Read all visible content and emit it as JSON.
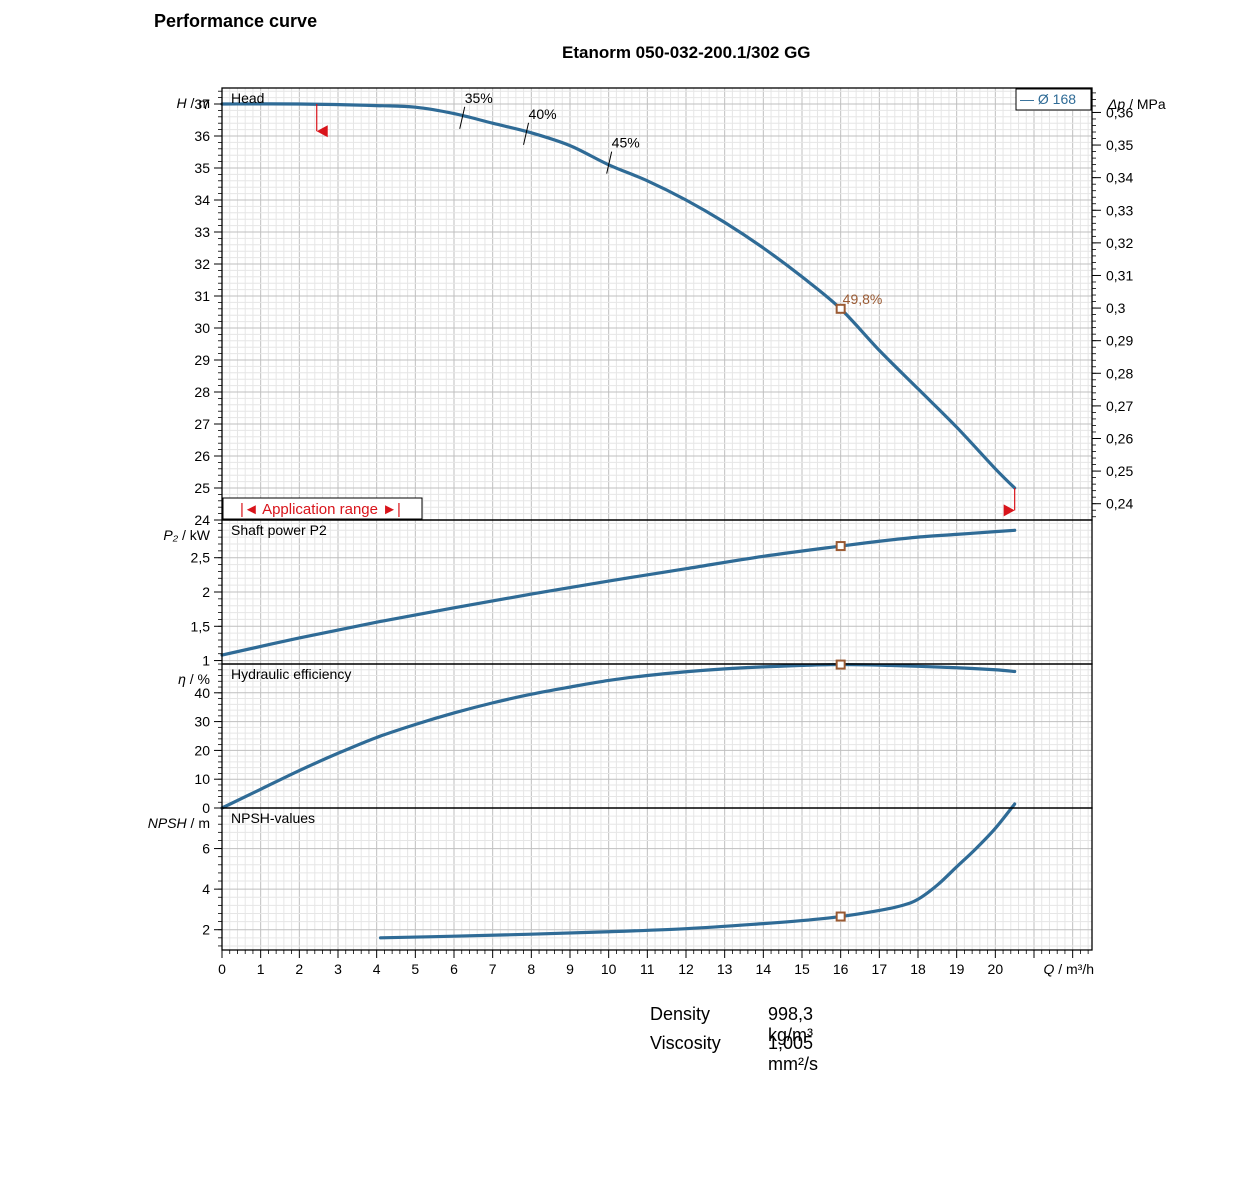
{
  "page": {
    "title": "Performance curve",
    "subtitle": "Etanorm 050-032-200.1/302 GG"
  },
  "fluid_properties": [
    {
      "label": "Density",
      "value": "998,3 kg/m³"
    },
    {
      "label": "Viscosity",
      "value": "1,005 mm²/s"
    }
  ],
  "colors": {
    "curve": "#2f6b96",
    "operating_point": "#9a5a33",
    "application_range": "#d9141b",
    "grid_major": "#bfbfbf",
    "grid_minor": "#e6e6e6"
  },
  "chart_data": [
    {
      "type": "line",
      "panel": "head",
      "title": "Head",
      "ylabel_italic": "H",
      "ylabel_unit": "/ m",
      "ylabel_right_italic": "Δp",
      "ylabel_right_unit": "/ MPa",
      "ylim": [
        24,
        37.5
      ],
      "yticks": [
        24,
        25,
        26,
        27,
        28,
        29,
        30,
        31,
        32,
        33,
        34,
        35,
        36,
        37
      ],
      "ylim_right": [
        0.235,
        0.3675
      ],
      "yticks_right": [
        "0,24",
        "0,25",
        "0,26",
        "0,27",
        "0,28",
        "0,29",
        "0,3",
        "0,31",
        "0,32",
        "0,33",
        "0,34",
        "0,35",
        "0,36"
      ],
      "legend": "— Ø 168",
      "legend_position": "top-right",
      "series": [
        {
          "name": "Ø 168",
          "x": [
            0,
            2,
            4,
            5,
            6,
            7,
            8,
            9,
            10,
            11,
            12,
            13,
            14,
            15,
            16,
            17,
            18,
            19,
            20,
            20.5
          ],
          "y": [
            37.0,
            37.0,
            36.95,
            36.9,
            36.7,
            36.4,
            36.1,
            35.7,
            35.1,
            34.6,
            34.0,
            33.3,
            32.5,
            31.6,
            30.6,
            29.3,
            28.1,
            26.9,
            25.6,
            25.0
          ]
        }
      ],
      "efficiency_marks": [
        {
          "label": "35%",
          "x": 6.2,
          "y": 36.6
        },
        {
          "label": "40%",
          "x": 7.85,
          "y": 36.1
        },
        {
          "label": "45%",
          "x": 10.0,
          "y": 35.2
        }
      ],
      "operating_point": {
        "x": 16,
        "y": 30.6,
        "label": "49,8%"
      },
      "application_range": {
        "label": "|◄ Application range ►|",
        "q_min": 2.45,
        "q_max": 20.5
      }
    },
    {
      "type": "line",
      "panel": "power",
      "title": "Shaft power P2",
      "ylabel_italic": "P₂",
      "ylabel_unit": "/ kW",
      "ylim": [
        0.95,
        3.05
      ],
      "yticks": [
        "1",
        "1,5",
        "2",
        "2,5"
      ],
      "ytick_values": [
        1,
        1.5,
        2,
        2.5
      ],
      "series": [
        {
          "name": "",
          "x": [
            0,
            2,
            4,
            6,
            8,
            10,
            12,
            14,
            16,
            17,
            18,
            19,
            20,
            20.5
          ],
          "y": [
            1.08,
            1.33,
            1.56,
            1.77,
            1.97,
            2.16,
            2.34,
            2.52,
            2.67,
            2.74,
            2.8,
            2.84,
            2.88,
            2.9
          ]
        }
      ],
      "operating_point": {
        "x": 16,
        "y": 2.67
      }
    },
    {
      "type": "line",
      "panel": "efficiency",
      "title": "Hydraulic efficiency",
      "ylabel_italic": "η",
      "ylabel_unit": "/ %",
      "ylim": [
        0,
        50
      ],
      "yticks": [
        "0",
        "10",
        "20",
        "30",
        "40"
      ],
      "ytick_values": [
        0,
        10,
        20,
        30,
        40
      ],
      "series": [
        {
          "name": "",
          "x": [
            0,
            1,
            2,
            3,
            4,
            5,
            6,
            7,
            8,
            9,
            10,
            11,
            12,
            13,
            14,
            15,
            16,
            17,
            18,
            19,
            20,
            20.5
          ],
          "y": [
            0,
            6.5,
            13,
            19,
            24.5,
            29,
            33,
            36.5,
            39.5,
            42,
            44.3,
            46,
            47.3,
            48.3,
            49,
            49.5,
            49.8,
            49.6,
            49.2,
            48.7,
            48.0,
            47.4
          ]
        }
      ],
      "operating_point": {
        "x": 16,
        "y": 49.8
      }
    },
    {
      "type": "line",
      "panel": "npsh",
      "title": "NPSH-values",
      "ylabel_italic": "NPSH",
      "ylabel_unit": "/ m",
      "ylim": [
        1,
        8
      ],
      "yticks": [
        "2",
        "4",
        "6"
      ],
      "ytick_values": [
        2,
        4,
        6
      ],
      "series": [
        {
          "name": "",
          "x": [
            4.1,
            6,
            8,
            10,
            12,
            14,
            15,
            16,
            17,
            17.6,
            18,
            18.5,
            19,
            19.5,
            20,
            20.5
          ],
          "y": [
            1.6,
            1.68,
            1.78,
            1.9,
            2.05,
            2.3,
            2.45,
            2.65,
            2.95,
            3.2,
            3.5,
            4.2,
            5.1,
            6.0,
            7.0,
            8.2
          ]
        }
      ],
      "operating_point": {
        "x": 16,
        "y": 2.65
      }
    }
  ],
  "x_axis": {
    "label_italic": "Q",
    "label_unit": "/ m³/h",
    "xlim": [
      0,
      22.5
    ],
    "ticks": [
      "0",
      "1",
      "2",
      "3",
      "4",
      "5",
      "6",
      "7",
      "8",
      "9",
      "10",
      "11",
      "12",
      "13",
      "14",
      "15",
      "16",
      "17",
      "18",
      "19",
      "20"
    ]
  }
}
